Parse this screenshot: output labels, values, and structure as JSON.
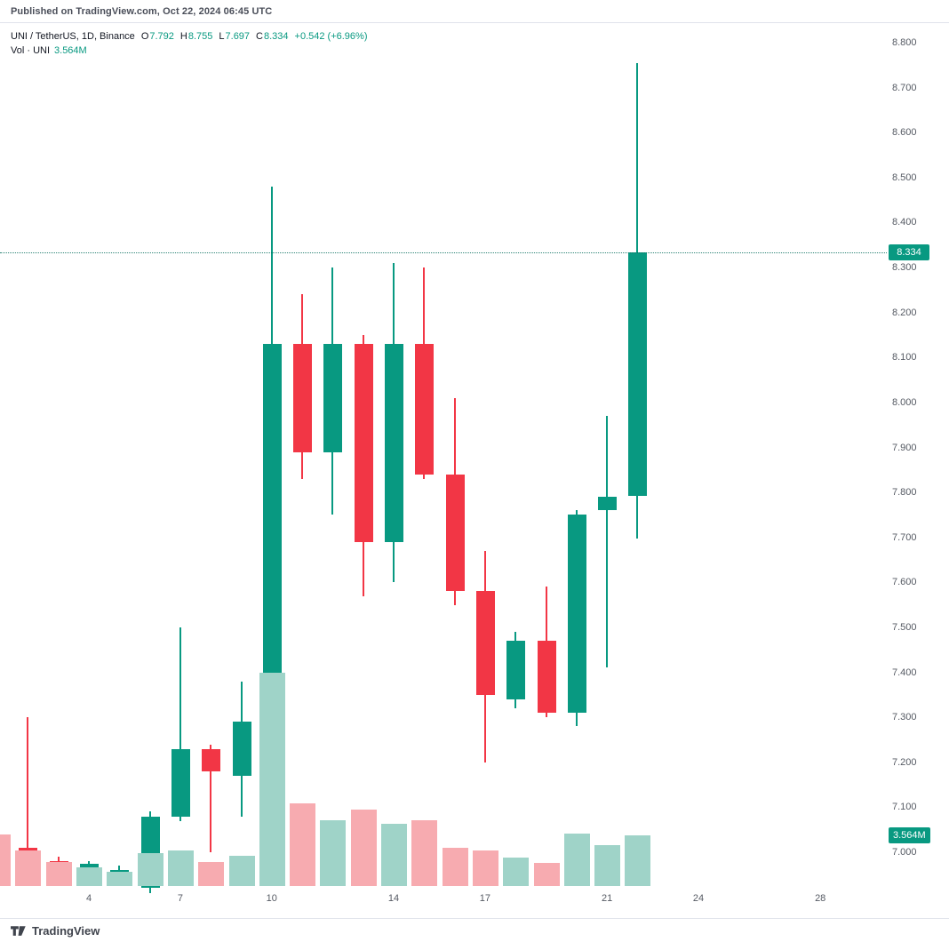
{
  "published_bar": {
    "text": "Published on TradingView.com, Oct 22, 2024 06:45 UTC"
  },
  "legend": {
    "title": "UNI / TetherUS, 1D, Binance",
    "ohlc": [
      {
        "k": "O",
        "v": "7.792"
      },
      {
        "k": "H",
        "v": "8.755"
      },
      {
        "k": "L",
        "v": "7.697"
      },
      {
        "k": "C",
        "v": "8.334"
      }
    ],
    "change": "+0.542 (+6.96%)",
    "vol_label": "Vol · UNI",
    "vol_value": "3.564M"
  },
  "footer": {
    "brand": "TradingView"
  },
  "colors": {
    "up": "#089981",
    "down": "#f23645",
    "vol_up": "#9fd3c8",
    "vol_down": "#f7abb0",
    "badge_bg": "#089981",
    "badge_text": "#ffffff",
    "axis_text": "#555a63"
  },
  "chart_data": {
    "type": "candlestick",
    "title": "UNI / TetherUS, 1D, Binance",
    "symbol": "UNI / TetherUS",
    "interval": "1D",
    "exchange": "Binance",
    "price_badge": "8.334",
    "volume_badge": "3.564M",
    "current_price": 8.334,
    "volume_unit": "M",
    "y_axis": {
      "min": 7.0,
      "max": 8.8,
      "tick_step": 0.1,
      "ticks": [
        8.8,
        8.7,
        8.6,
        8.5,
        8.4,
        8.3,
        8.2,
        8.1,
        8.0,
        7.9,
        7.8,
        7.7,
        7.6,
        7.5,
        7.4,
        7.3,
        7.2,
        7.1,
        7.0
      ]
    },
    "x_axis": {
      "labels": [
        {
          "day": 4,
          "label": "4"
        },
        {
          "day": 7,
          "label": "7"
        },
        {
          "day": 10,
          "label": "10"
        },
        {
          "day": 14,
          "label": "14"
        },
        {
          "day": 17,
          "label": "17"
        },
        {
          "day": 21,
          "label": "21"
        },
        {
          "day": 24,
          "label": "24"
        },
        {
          "day": 28,
          "label": "28"
        }
      ]
    },
    "candles": [
      {
        "day": 1,
        "o": 7.02,
        "h": 7.05,
        "l": 6.98,
        "c": 6.99,
        "v": 3.6
      },
      {
        "day": 2,
        "o": 7.01,
        "h": 7.3,
        "l": 6.95,
        "c": 6.96,
        "v": 2.5
      },
      {
        "day": 3,
        "o": 6.98,
        "h": 6.99,
        "l": 6.95,
        "c": 6.96,
        "v": 1.7
      },
      {
        "day": 4,
        "o": 6.955,
        "h": 6.98,
        "l": 6.95,
        "c": 6.975,
        "v": 1.3
      },
      {
        "day": 5,
        "o": 6.95,
        "h": 6.97,
        "l": 6.94,
        "c": 6.96,
        "v": 1.0
      },
      {
        "day": 6,
        "o": 6.92,
        "h": 7.09,
        "l": 6.91,
        "c": 7.08,
        "v": 2.3
      },
      {
        "day": 7,
        "o": 7.08,
        "h": 7.5,
        "l": 7.07,
        "c": 7.23,
        "v": 2.5
      },
      {
        "day": 8,
        "o": 7.23,
        "h": 7.24,
        "l": 7.0,
        "c": 7.18,
        "v": 1.7
      },
      {
        "day": 9,
        "o": 7.17,
        "h": 7.38,
        "l": 7.08,
        "c": 7.29,
        "v": 2.1
      },
      {
        "day": 10,
        "o": 7.29,
        "h": 8.48,
        "l": 7.28,
        "c": 8.13,
        "v": 15.0
      },
      {
        "day": 11,
        "o": 8.13,
        "h": 8.24,
        "l": 7.83,
        "c": 7.89,
        "v": 5.8
      },
      {
        "day": 12,
        "o": 7.89,
        "h": 8.3,
        "l": 7.75,
        "c": 8.13,
        "v": 4.6
      },
      {
        "day": 13,
        "o": 8.13,
        "h": 8.15,
        "l": 7.57,
        "c": 7.69,
        "v": 5.4
      },
      {
        "day": 14,
        "o": 7.69,
        "h": 8.31,
        "l": 7.6,
        "c": 8.13,
        "v": 4.4
      },
      {
        "day": 15,
        "o": 8.13,
        "h": 8.3,
        "l": 7.83,
        "c": 7.84,
        "v": 4.6
      },
      {
        "day": 16,
        "o": 7.84,
        "h": 8.01,
        "l": 7.55,
        "c": 7.58,
        "v": 2.7
      },
      {
        "day": 17,
        "o": 7.58,
        "h": 7.67,
        "l": 7.2,
        "c": 7.35,
        "v": 2.5
      },
      {
        "day": 18,
        "o": 7.34,
        "h": 7.49,
        "l": 7.32,
        "c": 7.47,
        "v": 2.0
      },
      {
        "day": 19,
        "o": 7.47,
        "h": 7.59,
        "l": 7.3,
        "c": 7.31,
        "v": 1.6
      },
      {
        "day": 20,
        "o": 7.31,
        "h": 7.76,
        "l": 7.28,
        "c": 7.75,
        "v": 3.7
      },
      {
        "day": 21,
        "o": 7.76,
        "h": 7.97,
        "l": 7.41,
        "c": 7.79,
        "v": 2.9
      },
      {
        "day": 22,
        "o": 7.792,
        "h": 8.755,
        "l": 7.697,
        "c": 8.334,
        "v": 3.564
      }
    ]
  }
}
